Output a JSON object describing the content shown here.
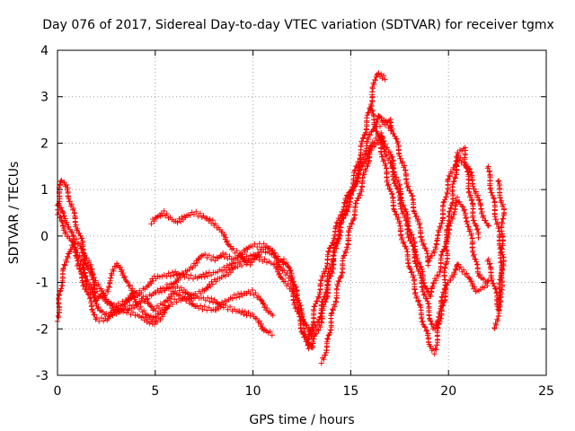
{
  "chart_data": {
    "type": "scatter",
    "title": "Day 076 of 2017, Sidereal Day-to-day VTEC variation (SDTVAR) for receiver tgmx",
    "xlabel": "GPS time / hours",
    "ylabel": "SDTVAR / TECUs",
    "xlim": [
      0,
      25
    ],
    "ylim": [
      -3,
      4
    ],
    "xticks": [
      "0",
      "5",
      "10",
      "15",
      "20",
      "25"
    ],
    "yticks": [
      "-3",
      "-2",
      "-1",
      "0",
      "1",
      "2",
      "3",
      "4"
    ],
    "grid": true,
    "marker": "+",
    "color": "#ff0000",
    "series": [
      {
        "name": "tracks",
        "tracks": [
          [
            [
              0,
              0.6
            ],
            [
              0.2,
              1.2
            ],
            [
              0.5,
              1.0
            ],
            [
              1.0,
              0.2
            ],
            [
              1.5,
              -0.5
            ],
            [
              2.0,
              -1.0
            ],
            [
              2.5,
              -1.4
            ],
            [
              3.0,
              -1.5
            ],
            [
              4.0,
              -1.3
            ],
            [
              5.0,
              -0.9
            ],
            [
              6.0,
              -0.8
            ],
            [
              7.0,
              -0.9
            ],
            [
              8.0,
              -0.8
            ],
            [
              9.0,
              -0.6
            ],
            [
              10.0,
              -0.4
            ],
            [
              11.0,
              -0.6
            ],
            [
              12.0,
              -1.2
            ],
            [
              12.5,
              -2.0
            ],
            [
              12.8,
              -2.4
            ],
            [
              13.2,
              -1.5
            ],
            [
              14.0,
              -0.2
            ],
            [
              14.5,
              0.5
            ],
            [
              15.0,
              1.0
            ],
            [
              15.5,
              1.8
            ],
            [
              16.0,
              2.8
            ],
            [
              16.3,
              3.5
            ],
            [
              16.8,
              3.4
            ]
          ],
          [
            [
              0,
              0.5
            ],
            [
              0.3,
              0.2
            ],
            [
              0.8,
              -0.2
            ],
            [
              1.3,
              -0.8
            ],
            [
              2.0,
              -1.5
            ],
            [
              2.5,
              -1.7
            ],
            [
              3.5,
              -1.6
            ],
            [
              4.5,
              -1.8
            ],
            [
              5.0,
              -1.9
            ],
            [
              5.5,
              -1.6
            ],
            [
              6.0,
              -1.4
            ],
            [
              7.0,
              -1.3
            ],
            [
              8.0,
              -1.4
            ],
            [
              9.0,
              -1.6
            ],
            [
              10.0,
              -1.7
            ],
            [
              10.5,
              -2.0
            ],
            [
              11.0,
              -2.1
            ]
          ],
          [
            [
              0,
              -1.8
            ],
            [
              0.2,
              -1.0
            ],
            [
              0.5,
              -0.4
            ],
            [
              1.0,
              -0.1
            ],
            [
              1.5,
              -0.6
            ],
            [
              2.0,
              -1.2
            ],
            [
              3.0,
              -1.6
            ],
            [
              4.0,
              -1.5
            ],
            [
              5.0,
              -1.2
            ],
            [
              6.0,
              -1.1
            ],
            [
              7.0,
              -1.3
            ],
            [
              8.0,
              -1.0
            ],
            [
              9.0,
              -0.7
            ],
            [
              10.0,
              -0.5
            ],
            [
              10.5,
              -0.3
            ],
            [
              11.0,
              -0.4
            ],
            [
              11.5,
              -0.7
            ],
            [
              12.0,
              -1.0
            ],
            [
              12.6,
              -1.8
            ],
            [
              13.0,
              -2.2
            ],
            [
              13.5,
              -1.6
            ],
            [
              14.0,
              -0.6
            ],
            [
              14.5,
              0.2
            ],
            [
              15.0,
              0.8
            ],
            [
              15.5,
              1.5
            ],
            [
              16.0,
              2.2
            ],
            [
              16.5,
              2.6
            ],
            [
              17.0,
              2.3
            ]
          ],
          [
            [
              1.0,
              -0.6
            ],
            [
              1.5,
              -1.2
            ],
            [
              2.0,
              -1.8
            ],
            [
              2.5,
              -1.8
            ],
            [
              3.0,
              -1.6
            ],
            [
              3.5,
              -1.4
            ],
            [
              4.0,
              -1.2
            ],
            [
              4.5,
              -1.4
            ],
            [
              5.0,
              -1.6
            ],
            [
              5.5,
              -1.4
            ],
            [
              6.0,
              -1.2
            ],
            [
              7.0,
              -1.5
            ],
            [
              8.0,
              -1.6
            ],
            [
              9.0,
              -1.3
            ],
            [
              10.0,
              -1.2
            ],
            [
              10.6,
              -1.5
            ],
            [
              11.0,
              -1.7
            ]
          ],
          [
            [
              0,
              0.7
            ],
            [
              0.5,
              0.3
            ],
            [
              1.0,
              -0.3
            ],
            [
              1.5,
              -0.9
            ],
            [
              2.0,
              -1.4
            ],
            [
              2.5,
              -1.2
            ],
            [
              3.0,
              -0.6
            ],
            [
              3.5,
              -0.9
            ],
            [
              4.0,
              -1.4
            ],
            [
              4.5,
              -1.7
            ],
            [
              5.0,
              -1.8
            ],
            [
              5.5,
              -1.5
            ]
          ],
          [
            [
              4.8,
              0.3
            ],
            [
              5.0,
              0.4
            ],
            [
              5.5,
              0.5
            ],
            [
              6.0,
              0.3
            ],
            [
              6.5,
              0.4
            ],
            [
              7.0,
              0.5
            ],
            [
              7.5,
              0.4
            ],
            [
              8.0,
              0.3
            ],
            [
              8.5,
              0.0
            ],
            [
              9.0,
              -0.3
            ],
            [
              9.5,
              -0.5
            ],
            [
              10.0,
              -0.6
            ]
          ],
          [
            [
              5.5,
              -1.1
            ],
            [
              6.0,
              -1.0
            ],
            [
              7.0,
              -0.6
            ],
            [
              7.5,
              -0.4
            ],
            [
              8.0,
              -0.5
            ],
            [
              8.5,
              -0.4
            ],
            [
              9.0,
              -0.5
            ],
            [
              10.0,
              -0.2
            ],
            [
              10.5,
              -0.2
            ],
            [
              11.0,
              -0.3
            ],
            [
              11.5,
              -0.6
            ]
          ],
          [
            [
              11.5,
              -0.5
            ],
            [
              12.0,
              -0.8
            ],
            [
              12.4,
              -1.6
            ],
            [
              12.8,
              -2.3
            ],
            [
              13.0,
              -2.4
            ],
            [
              13.5,
              -1.8
            ],
            [
              14.0,
              -0.8
            ],
            [
              14.5,
              0.3
            ],
            [
              15.0,
              0.9
            ],
            [
              15.5,
              1.4
            ],
            [
              16.0,
              1.9
            ],
            [
              16.5,
              2.2
            ],
            [
              17.0,
              1.8
            ],
            [
              17.5,
              1.0
            ],
            [
              18.0,
              0.2
            ],
            [
              18.5,
              -0.6
            ],
            [
              19.0,
              -1.3
            ],
            [
              19.5,
              -0.8
            ],
            [
              20.0,
              0.2
            ],
            [
              20.5,
              0.8
            ],
            [
              21.0,
              0.3
            ],
            [
              21.5,
              -0.8
            ],
            [
              22.0,
              -1.0
            ]
          ],
          [
            [
              13.5,
              -2.7
            ],
            [
              13.8,
              -2.4
            ],
            [
              14.0,
              -1.8
            ],
            [
              14.5,
              -0.8
            ],
            [
              15.0,
              0.2
            ],
            [
              15.5,
              1.0
            ],
            [
              16.0,
              1.8
            ],
            [
              16.5,
              2.1
            ],
            [
              17.0,
              1.6
            ],
            [
              17.5,
              0.8
            ],
            [
              18.0,
              0.0
            ],
            [
              18.5,
              -0.8
            ],
            [
              19.0,
              -1.6
            ],
            [
              19.2,
              -2.0
            ],
            [
              19.5,
              -1.8
            ],
            [
              20.0,
              -1.0
            ],
            [
              20.5,
              -0.6
            ],
            [
              21.0,
              -0.9
            ],
            [
              21.5,
              -1.2
            ],
            [
              22.0,
              -1.0
            ]
          ],
          [
            [
              16.0,
              2.8
            ],
            [
              16.5,
              2.0
            ],
            [
              17.0,
              1.0
            ],
            [
              17.5,
              0.2
            ],
            [
              18.0,
              -0.6
            ],
            [
              18.5,
              -1.5
            ],
            [
              19.0,
              -2.3
            ],
            [
              19.3,
              -2.5
            ],
            [
              19.5,
              -2.0
            ],
            [
              19.8,
              -1.0
            ],
            [
              20.0,
              0.2
            ],
            [
              20.3,
              1.2
            ],
            [
              20.5,
              1.8
            ],
            [
              20.8,
              1.9
            ],
            [
              21.0,
              1.2
            ],
            [
              21.3,
              0.4
            ],
            [
              21.5,
              0.0
            ]
          ],
          [
            [
              16.5,
              2.4
            ],
            [
              17.0,
              2.5
            ],
            [
              17.5,
              1.8
            ],
            [
              18.0,
              1.0
            ],
            [
              18.5,
              0.2
            ],
            [
              19.0,
              -0.6
            ],
            [
              19.5,
              0.0
            ],
            [
              20.0,
              1.2
            ],
            [
              20.5,
              1.7
            ],
            [
              21.0,
              1.5
            ],
            [
              21.5,
              0.8
            ],
            [
              22.0,
              0.2
            ]
          ],
          [
            [
              22.0,
              1.5
            ],
            [
              22.2,
              1.0
            ],
            [
              22.4,
              0.5
            ],
            [
              22.6,
              0.0
            ],
            [
              22.8,
              -0.6
            ],
            [
              22.6,
              -1.5
            ],
            [
              22.4,
              -2.0
            ]
          ],
          [
            [
              22.0,
              -0.5
            ],
            [
              22.3,
              -1.0
            ],
            [
              22.6,
              -1.6
            ],
            [
              22.8,
              0.6
            ],
            [
              22.5,
              1.2
            ]
          ]
        ]
      }
    ]
  }
}
